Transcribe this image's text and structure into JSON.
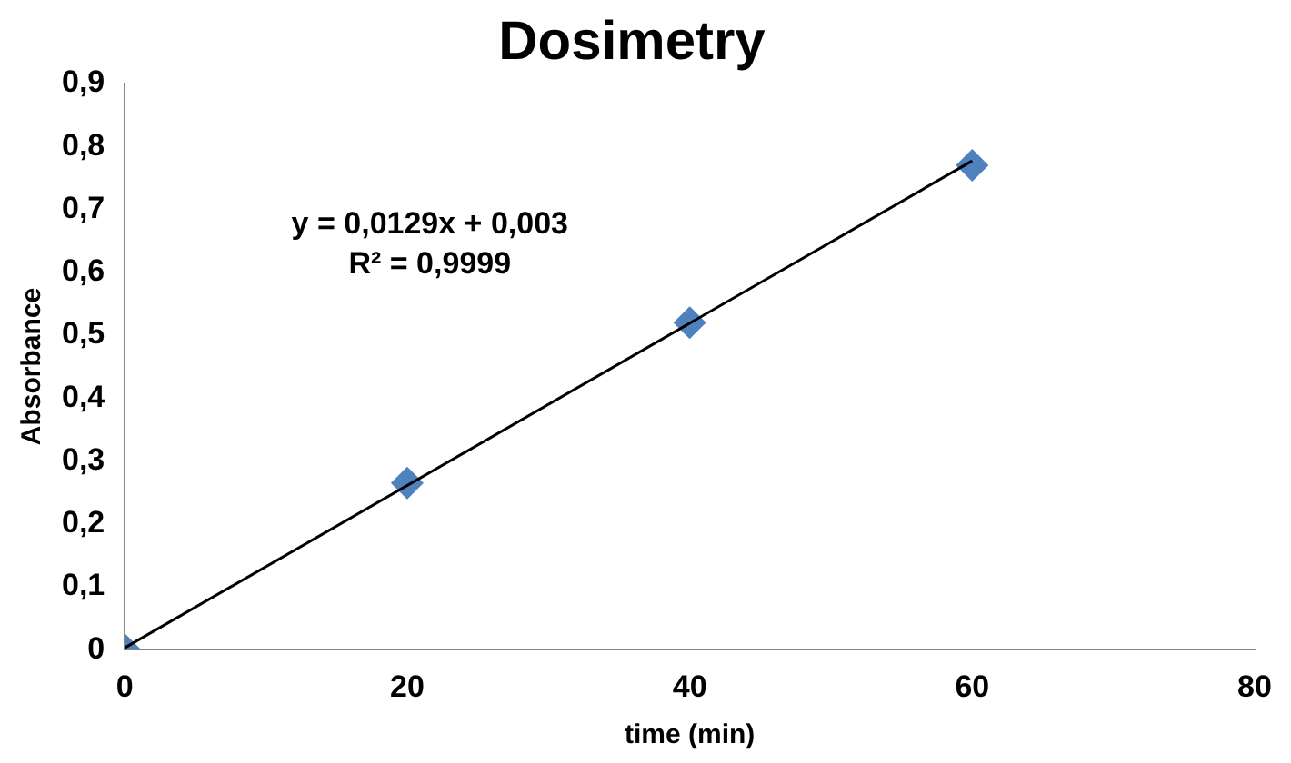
{
  "chart_data": {
    "type": "scatter",
    "title": "Dosimetry",
    "xlabel": "time (min)",
    "ylabel": "Absorbance",
    "x": [
      0,
      20,
      40,
      60
    ],
    "series": [
      {
        "type": "scatter",
        "color": "#4f81bd",
        "marker": "diamond",
        "values": [
          0,
          0.265,
          0.52,
          0.77
        ]
      },
      {
        "type": "line",
        "color": "#000000",
        "marker": "none",
        "x": [
          0,
          60
        ],
        "values": [
          0.003,
          0.777
        ]
      }
    ],
    "xlim": [
      0,
      80
    ],
    "xticks": [
      0,
      20,
      40,
      60,
      80
    ],
    "ylim": [
      0,
      0.9
    ],
    "yticks": [
      0,
      {
        "value": 0.1,
        "label": "0,1"
      },
      {
        "value": 0.2,
        "label": "0,2"
      },
      {
        "value": 0.3,
        "label": "0,3"
      },
      {
        "value": 0.4,
        "label": "0,4"
      },
      {
        "value": 0.5,
        "label": "0,5"
      },
      {
        "value": 0.6,
        "label": "0,6"
      },
      {
        "value": 0.7,
        "label": "0,7"
      },
      {
        "value": 0.8,
        "label": "0,8"
      },
      {
        "value": 0.9,
        "label": "0,9"
      }
    ],
    "annotations": [
      "y = 0,0129x + 0,003",
      "R² = 0,9999"
    ],
    "grid": false,
    "legend": false
  }
}
